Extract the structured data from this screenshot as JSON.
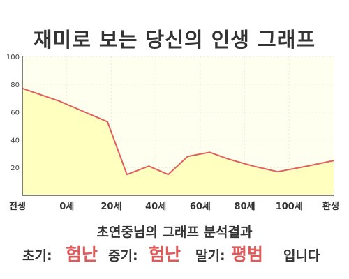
{
  "title": "재미로 보는 당신의 인생 그래프",
  "colors": {
    "fill": "#ffffc0",
    "line": "#e06060",
    "plot_bg": "#fffff0",
    "highlight": "#e05a5a",
    "text": "#333333"
  },
  "chart_data": {
    "type": "area",
    "x_labels": [
      "전생",
      "0세",
      "20세",
      "40세",
      "60세",
      "80세",
      "100세",
      "환생"
    ],
    "y_ticks": [
      "100",
      "80",
      "60",
      "40",
      "20"
    ],
    "ylim": [
      0,
      100
    ],
    "grid": true,
    "x": [
      -15,
      0,
      20,
      28,
      37,
      45,
      53,
      62,
      70,
      80,
      90,
      102,
      113
    ],
    "y": [
      77,
      68,
      53,
      15,
      21,
      15,
      28,
      31,
      26,
      21,
      17,
      21,
      25
    ]
  },
  "summary": {
    "heading": "초연중님의 그래프 분석결과",
    "early_label": "초기:",
    "early_value": "험난",
    "middle_label": "중기:",
    "middle_value": "험난",
    "late_label": "말기:",
    "late_value": "평범",
    "ending": "입니다"
  }
}
